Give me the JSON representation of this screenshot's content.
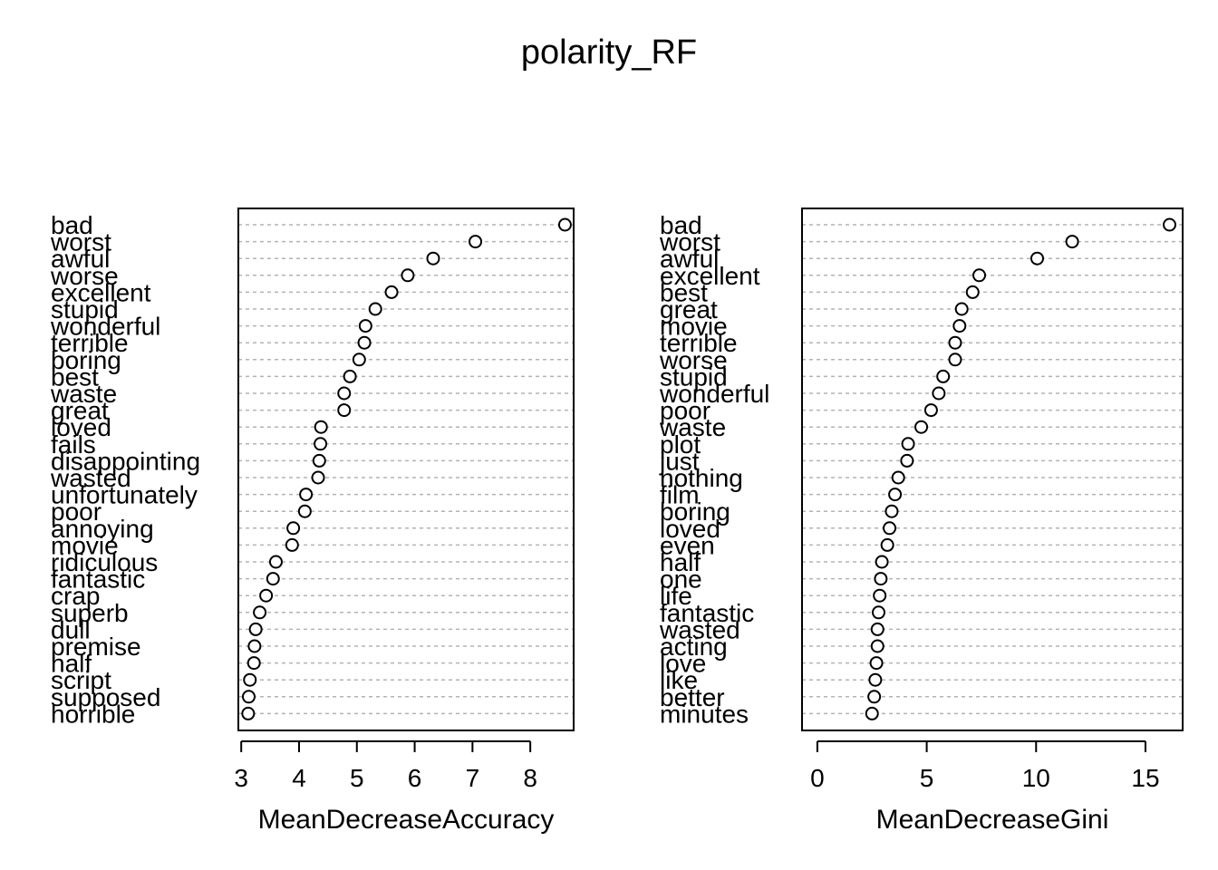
{
  "title": "polarity_RF",
  "chart_data": [
    {
      "type": "scatter",
      "variant": "dotchart",
      "xlabel": "MeanDecreaseAccuracy",
      "ylabel": "",
      "xlim": [
        2.95,
        8.75
      ],
      "xticks": [
        3,
        4,
        5,
        6,
        7,
        8
      ],
      "grid": "dashed horizontal guides",
      "labels": [
        "bad",
        "worst",
        "awful",
        "worse",
        "excellent",
        "stupid",
        "wonderful",
        "terrible",
        "boring",
        "best",
        "waste",
        "great",
        "loved",
        "fails",
        "disappointing",
        "wasted",
        "unfortunately",
        "poor",
        "annoying",
        "movie",
        "ridiculous",
        "fantastic",
        "crap",
        "superb",
        "dull",
        "premise",
        "half",
        "script",
        "supposed",
        "horrible"
      ],
      "values": [
        8.6,
        7.05,
        6.32,
        5.88,
        5.6,
        5.32,
        5.15,
        5.13,
        5.04,
        4.88,
        4.78,
        4.78,
        4.38,
        4.37,
        4.35,
        4.33,
        4.12,
        4.1,
        3.9,
        3.88,
        3.6,
        3.55,
        3.43,
        3.32,
        3.25,
        3.23,
        3.22,
        3.15,
        3.13,
        3.12
      ]
    },
    {
      "type": "scatter",
      "variant": "dotchart",
      "xlabel": "MeanDecreaseGini",
      "ylabel": "",
      "xlim": [
        -0.7,
        16.7
      ],
      "xticks": [
        0,
        5,
        10,
        15
      ],
      "grid": "dashed horizontal guides",
      "labels": [
        "bad",
        "worst",
        "awful",
        "excellent",
        "best",
        "great",
        "movie",
        "terrible",
        "worse",
        "stupid",
        "wonderful",
        "poor",
        "waste",
        "plot",
        "just",
        "nothing",
        "film",
        "boring",
        "loved",
        "even",
        "half",
        "one",
        "life",
        "fantastic",
        "wasted",
        "acting",
        "love",
        "like",
        "better",
        "minutes"
      ],
      "values": [
        16.1,
        11.65,
        10.05,
        7.4,
        7.1,
        6.6,
        6.5,
        6.3,
        6.3,
        5.75,
        5.55,
        5.2,
        4.75,
        4.15,
        4.1,
        3.7,
        3.55,
        3.4,
        3.3,
        3.2,
        2.95,
        2.9,
        2.85,
        2.8,
        2.75,
        2.75,
        2.7,
        2.65,
        2.6,
        2.5
      ]
    }
  ]
}
